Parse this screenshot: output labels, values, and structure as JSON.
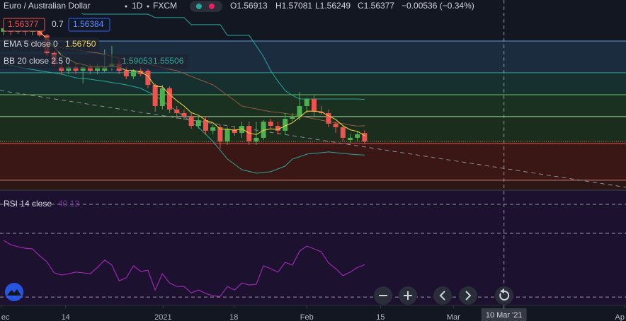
{
  "chart_data": [
    {
      "type": "candlestick",
      "title": "Euro / Australian Dollar",
      "interval": "1D",
      "source": "FXCM",
      "legend_ohlc": [
        "O1.56913",
        "H1.57081",
        "L1.56249",
        "C1.56377",
        "−0.00536 (−0.34%)"
      ],
      "price_tags": [
        "1.56377",
        "0.7",
        "1.56384"
      ],
      "up_color": "#4caf50",
      "down_color": "#ef5350",
      "xlim": [
        -0.49,
        86.2
      ],
      "ylim": [
        1.5332,
        1.6538
      ],
      "xticks": [
        {
          "value": -0.3,
          "label": "ec"
        },
        {
          "value": 8.6,
          "label": "14"
        },
        {
          "value": 22.1,
          "label": "2021"
        },
        {
          "value": 31.9,
          "label": "18"
        },
        {
          "value": 42,
          "label": "Feb"
        },
        {
          "value": 52.2,
          "label": "15"
        },
        {
          "value": 62.3,
          "label": "Mar"
        },
        {
          "value": 86,
          "label": "Ap"
        }
      ],
      "crosshair": {
        "x": 69.3,
        "label": "10 Mar '21"
      },
      "open": [
        1.6336,
        1.6358,
        1.6336,
        1.6349,
        1.6336,
        1.6358,
        1.6313,
        1.6201,
        1.6111,
        1.6088,
        1.6111,
        1.6088,
        1.6111,
        1.6088,
        1.6088,
        1.6111,
        1.6133,
        1.6088,
        1.6052,
        1.6088,
        1.6088,
        1.5998,
        1.5863,
        1.5976,
        1.5841,
        1.5818,
        1.5796,
        1.5737,
        1.5773,
        1.5706,
        1.5728,
        1.5638,
        1.5715,
        1.5692,
        1.5737,
        1.5638,
        1.5661,
        1.5764,
        1.5737,
        1.5706,
        1.5782,
        1.5796,
        1.5863,
        1.5908,
        1.5827,
        1.5818,
        1.5751,
        1.5728,
        1.5647,
        1.5661,
        1.56913
      ],
      "high": [
        1.6381,
        1.6381,
        1.6367,
        1.6367,
        1.6376,
        1.6376,
        1.6322,
        1.6214,
        1.6142,
        1.6133,
        1.6133,
        1.6124,
        1.6133,
        1.6133,
        1.6223,
        1.6246,
        1.6156,
        1.6111,
        1.6097,
        1.6111,
        1.6097,
        1.6007,
        1.5998,
        1.5989,
        1.5863,
        1.5841,
        1.5818,
        1.5796,
        1.5796,
        1.5746,
        1.5746,
        1.5728,
        1.5737,
        1.5764,
        1.5764,
        1.5764,
        1.5773,
        1.5782,
        1.5764,
        1.5818,
        1.5818,
        1.5953,
        1.5917,
        1.5931,
        1.5863,
        1.5841,
        1.5764,
        1.5737,
        1.5683,
        1.5706,
        1.57081
      ],
      "low": [
        1.6313,
        1.6313,
        1.6322,
        1.6313,
        1.6313,
        1.6304,
        1.6178,
        1.6111,
        1.6066,
        1.6066,
        1.6066,
        1.6007,
        1.6066,
        1.6066,
        1.6079,
        1.6088,
        1.6066,
        1.6034,
        1.6034,
        1.6052,
        1.5976,
        1.5827,
        1.5841,
        1.5818,
        1.5782,
        1.5773,
        1.5719,
        1.5719,
        1.5683,
        1.5683,
        1.5593,
        1.5616,
        1.5674,
        1.5661,
        1.5616,
        1.5616,
        1.5647,
        1.5719,
        1.5683,
        1.5683,
        1.5764,
        1.5773,
        1.5818,
        1.5796,
        1.5809,
        1.5728,
        1.5692,
        1.5638,
        1.5629,
        1.5638,
        1.56249
      ],
      "close": [
        1.6358,
        1.6336,
        1.6349,
        1.6336,
        1.6358,
        1.6313,
        1.6201,
        1.6133,
        1.6088,
        1.6111,
        1.6088,
        1.6111,
        1.6088,
        1.6111,
        1.6111,
        1.6133,
        1.6088,
        1.6052,
        1.6088,
        1.6066,
        1.5998,
        1.5863,
        1.5976,
        1.5841,
        1.5818,
        1.5796,
        1.5737,
        1.5773,
        1.5706,
        1.5728,
        1.5638,
        1.5715,
        1.5692,
        1.5737,
        1.5638,
        1.5661,
        1.5764,
        1.5737,
        1.5706,
        1.5782,
        1.5796,
        1.5863,
        1.5908,
        1.5827,
        1.5818,
        1.5751,
        1.5728,
        1.5661,
        1.5661,
        1.5683,
        1.56377
      ],
      "ema": {
        "name": "EMA 5 close 0",
        "value_label": "1.56750",
        "color": "#f5d442",
        "values": [
          1.635,
          1.6345,
          1.6346,
          1.6342,
          1.6347,
          1.6336,
          1.6291,
          1.6238,
          1.6188,
          1.6162,
          1.6137,
          1.6128,
          1.6115,
          1.6114,
          1.6113,
          1.612,
          1.6109,
          1.609,
          1.6089,
          1.6081,
          1.6053,
          1.599,
          1.5985,
          1.5937,
          1.5897,
          1.5863,
          1.5821,
          1.5805,
          1.5772,
          1.5757,
          1.5717,
          1.5716,
          1.5708,
          1.5718,
          1.5691,
          1.5681,
          1.5709,
          1.5718,
          1.5714,
          1.5737,
          1.5757,
          1.5792,
          1.5831,
          1.583,
          1.5826,
          1.5801,
          1.5777,
          1.5738,
          1.5712,
          1.5702,
          1.5675
        ]
      },
      "bands": {
        "name": "BB 20 close 2.5 0",
        "upper_label": "1.59053",
        "lower_label": "1.55506",
        "band_color": "#26a69a",
        "basis_color": "#8d5a3c",
        "upper": [
          1.6493,
          1.6493,
          1.6493,
          1.6493,
          1.6493,
          1.6493,
          1.6471,
          1.6471,
          1.6471,
          1.6471,
          1.6471,
          1.6448,
          1.6448,
          1.6448,
          1.6448,
          1.6448,
          1.6448,
          1.6448,
          1.6448,
          1.6448,
          1.6448,
          1.6426,
          1.6426,
          1.6426,
          1.6426,
          1.6426,
          1.6381,
          1.6381,
          1.6381,
          1.6381,
          1.6381,
          1.6313,
          1.6313,
          1.6313,
          1.6313,
          1.6246,
          1.6178,
          1.6088,
          1.6021,
          1.5962,
          1.5931,
          1.5908,
          1.5908,
          1.5908,
          1.5908,
          1.5908,
          1.5908,
          1.5908,
          1.5908,
          1.5908,
          1.59053
        ],
        "basis": [
          1.6291,
          1.6284,
          1.6277,
          1.627,
          1.6264,
          1.6256,
          1.625,
          1.6242,
          1.6235,
          1.6228,
          1.6221,
          1.6214,
          1.6207,
          1.6201,
          1.6192,
          1.618,
          1.6169,
          1.616,
          1.6149,
          1.6138,
          1.6129,
          1.612,
          1.6108,
          1.6097,
          1.6088,
          1.607,
          1.6052,
          1.6034,
          1.6016,
          1.5998,
          1.5966,
          1.5931,
          1.5899,
          1.5863,
          1.5854,
          1.5845,
          1.5836,
          1.5827,
          1.5823,
          1.5816,
          1.5809,
          1.58,
          1.5791,
          1.5782,
          1.5773,
          1.5764,
          1.5757,
          1.5751,
          1.5742,
          1.5735,
          1.5738
        ],
        "lower": [
          1.6133,
          1.6122,
          1.6111,
          1.6103,
          1.6095,
          1.6088,
          1.6081,
          1.6073,
          1.6066,
          1.6055,
          1.6043,
          1.6038,
          1.6034,
          1.6027,
          1.6021,
          1.6013,
          1.6006,
          1.5998,
          1.5987,
          1.5976,
          1.5953,
          1.5931,
          1.5897,
          1.5863,
          1.583,
          1.5796,
          1.5762,
          1.5728,
          1.5683,
          1.5638,
          1.5582,
          1.5526,
          1.5492,
          1.5458,
          1.5447,
          1.5436,
          1.544,
          1.5445,
          1.5463,
          1.5481,
          1.5526,
          1.5541,
          1.5557,
          1.5562,
          1.5566,
          1.5571,
          1.5566,
          1.5562,
          1.5557,
          1.5554,
          1.55506
        ]
      },
      "levels": [
        {
          "value": 1.6277,
          "color": "#5b9bd5",
          "fill": "#1c2c3f"
        },
        {
          "value": 1.6075,
          "color": "#2a9d8f",
          "fill": "#16302f"
        },
        {
          "value": 1.5935,
          "color": "#6abf69",
          "fill": "#1a3020"
        },
        {
          "value": 1.5796,
          "color": "#a8d5a2",
          "fill": "#1b2e1d"
        },
        {
          "value": 1.5625,
          "color": "#e04b4b",
          "fill": "#3a1714"
        },
        {
          "value": 1.5391,
          "color": "#c9807a",
          "fill": "#2c1715"
        }
      ],
      "trendline": {
        "x": [
          -0.49,
          86.2
        ],
        "y": [
          1.5962,
          1.5346
        ],
        "color": "#8a8e99"
      }
    },
    {
      "type": "line",
      "name": "RSI 14 close",
      "value_label": "40.13",
      "color": "#9c27b0",
      "ylim": [
        27.8,
        63.3
      ],
      "levels": [
        30,
        50
      ],
      "values": [
        47.8,
        46.4,
        45.8,
        45.3,
        45.1,
        42.9,
        41.1,
        37.6,
        36.9,
        37.3,
        37.8,
        37.6,
        37.3,
        39.3,
        41.6,
        40.0,
        35.1,
        36.0,
        39.8,
        38.0,
        38.4,
        32.2,
        37.3,
        34.4,
        33.3,
        33.3,
        31.3,
        32.2,
        31.1,
        30.4,
        30.2,
        33.3,
        32.2,
        34.4,
        33.8,
        34.0,
        39.8,
        38.9,
        37.8,
        40.9,
        40.0,
        44.4,
        46.0,
        45.1,
        44.2,
        40.7,
        38.9,
        36.7,
        37.8,
        39.3,
        40.13
      ]
    }
  ]
}
